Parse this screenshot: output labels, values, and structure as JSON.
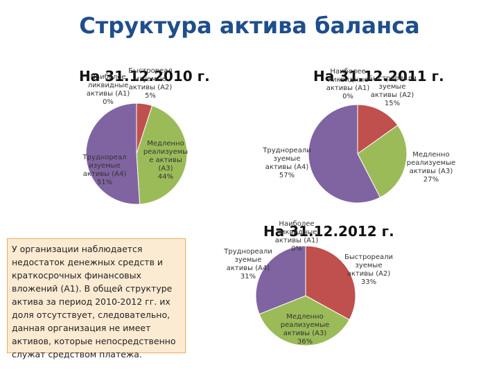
{
  "title": "Структура актива баланса",
  "note": "У организации наблюдается недостаток денежных средств и краткосрочных финансовых вложений (А1). В общей структуре актива за период 2010-2012 гг. их доля отсутствует, следовательно, данная организация не имеет активов, которые непосредственно служат средством платежа.",
  "colors": {
    "A1": "#4f81bd",
    "A2": "#c0504d",
    "A3": "#9bbb59",
    "A4": "#8064a2"
  },
  "chart_data": [
    {
      "type": "pie",
      "title": "На 31.12.2010 г.",
      "slices": [
        {
          "key": "A1",
          "label": "Наиболее ликвидные активы (А1)\n0%",
          "value": 0
        },
        {
          "key": "A2",
          "label": "Быстрореал изуемые активы (А2)\n5%",
          "value": 5
        },
        {
          "key": "A3",
          "label": "Медленно реализуемы е активы (А3)\n44%",
          "value": 44
        },
        {
          "key": "A4",
          "label": "Труднореал изуемые активы (А4)\n51%",
          "value": 51
        }
      ]
    },
    {
      "type": "pie",
      "title": "На 31.12.2011 г.",
      "slices": [
        {
          "key": "A1",
          "label": "Наиболее ликвидные активы (А1)\n0%",
          "value": 0
        },
        {
          "key": "A2",
          "label": "Быстрореали зуемые активы (А2)\n15%",
          "value": 15
        },
        {
          "key": "A3",
          "label": "Медленно реализуемые активы (А3)\n27%",
          "value": 27
        },
        {
          "key": "A4",
          "label": "Труднореали зуемые активы (А4)\n57%",
          "value": 57
        }
      ]
    },
    {
      "type": "pie",
      "title": "На 31.12.2012 г.",
      "slices": [
        {
          "key": "A1",
          "label": "Наиболее ликвидные активы (А1)\n0%",
          "value": 0
        },
        {
          "key": "A2",
          "label": "Быстрореали зуемые активы (А2)\n33%",
          "value": 33
        },
        {
          "key": "A3",
          "label": "Медленно реализуемые активы (А3)\n36%",
          "value": 36
        },
        {
          "key": "A4",
          "label": "Труднореали зуемые активы (А4)\n31%",
          "value": 31
        }
      ]
    }
  ]
}
